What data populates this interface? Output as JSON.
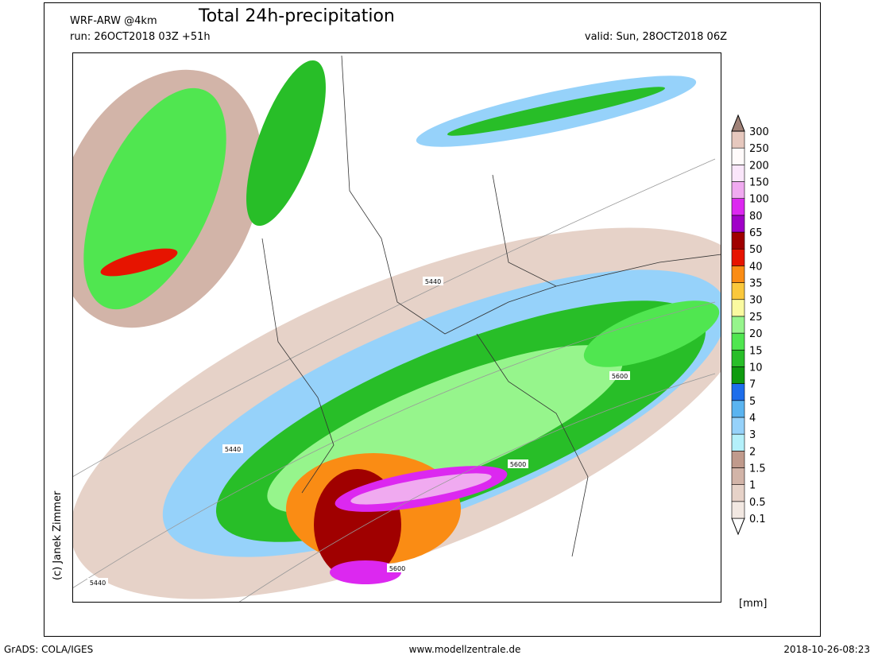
{
  "header": {
    "model": "WRF-ARW @4km",
    "title": "Total 24h-precipitation",
    "run": "run: 26OCT2018 03Z +51h",
    "valid": "valid: Sun, 28OCT2018 06Z"
  },
  "map": {
    "contour_labels": [
      "5440",
      "5440",
      "5440",
      "5600",
      "5600",
      "5600"
    ]
  },
  "legend": {
    "labels": [
      "0.1",
      "0.5",
      "1",
      "1.5",
      "2",
      "3",
      "4",
      "5",
      "7",
      "10",
      "15",
      "20",
      "25",
      "30",
      "35",
      "40",
      "50",
      "65",
      "80",
      "100",
      "150",
      "200",
      "250",
      "300"
    ],
    "colors": [
      "#ffffff",
      "#f2e8e2",
      "#e6d2c8",
      "#d2b4a8",
      "#c09a8c",
      "#b4f0fa",
      "#96d2fa",
      "#5ab4f0",
      "#1e6eeb",
      "#0f9b0f",
      "#28be28",
      "#50e650",
      "#96f58c",
      "#fafaa0",
      "#fac83c",
      "#fa8c14",
      "#e61400",
      "#a00000",
      "#a000c8",
      "#dc28f0",
      "#f0aaf0",
      "#fae6fa",
      "#fffafa",
      "#e6c8be",
      "#a08278"
    ],
    "unit": "[mm]"
  },
  "credit": "(c) Janek Zimmer",
  "footer": {
    "left": "GrADS: COLA/IGES",
    "center": "www.modellzentrale.de",
    "right": "2018-10-26-08:23"
  }
}
